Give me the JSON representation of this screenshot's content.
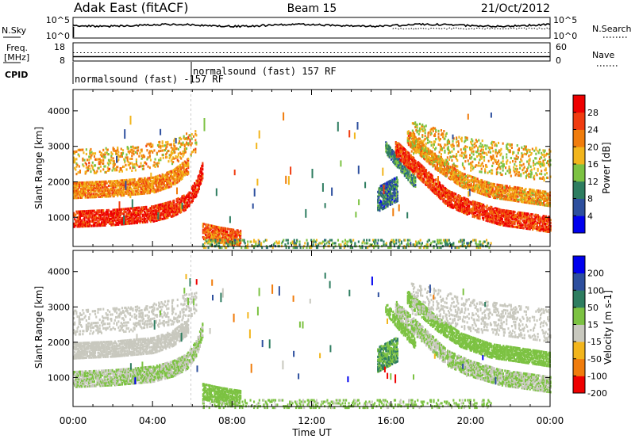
{
  "header": {
    "station": "Adak East (fitACF)",
    "beam": "Beam 15",
    "date": "21/Oct/2012"
  },
  "strips": {
    "sky_label": "N.Sky",
    "search_label": "N.Search",
    "sky_ticks": [
      "10^5",
      "10^0"
    ],
    "search_ticks": [
      "10^5",
      "10^0"
    ],
    "freq_label_1": "Freq.",
    "freq_label_2": "[MHz]",
    "freq_ticks": [
      "18",
      "8"
    ],
    "nave_label": "Nave",
    "nave_ticks": [
      "60",
      "0"
    ],
    "cpid_label": "CPID",
    "cpid_mode_a": "normalsound (fast) -157 RF",
    "cpid_mode_b": "normalsound (fast) 157 RF"
  },
  "time_ticks": [
    "00:00",
    "04:00",
    "08:00",
    "12:00",
    "16:00",
    "20:00",
    "00:00"
  ],
  "time_label": "Time UT",
  "chart_data": [
    {
      "type": "heatmap",
      "quantity": "Power",
      "ylabel": "Slant Range [km]",
      "xlabel": "Time UT",
      "x_range_hours": [
        0,
        24
      ],
      "ylim": [
        180,
        4600
      ],
      "y_ticks": [
        1000,
        2000,
        3000,
        4000
      ],
      "colorbar": {
        "label": "Power [dB]",
        "range": [
          0,
          30
        ],
        "ticks": [
          "4",
          "8",
          "12",
          "16",
          "20",
          "24",
          "28"
        ],
        "colors": [
          "#0000ee",
          "#2d4f9e",
          "#2e7d60",
          "#7cc242",
          "#f2b51c",
          "#f07c0c",
          "#f03c10",
          "#ee0000"
        ]
      },
      "regions": [
        {
          "desc": "band",
          "t": [
            0,
            2,
            4,
            5,
            5.7,
            6.2,
            6.5
          ],
          "y": [
            1000,
            1050,
            1150,
            1300,
            1500,
            1900,
            2400
          ],
          "halfwidth": 230,
          "power": 26
        },
        {
          "desc": "band",
          "t": [
            0,
            2,
            4,
            5,
            5.8
          ],
          "y": [
            1800,
            1850,
            1950,
            2150,
            2500
          ],
          "halfwidth": 220,
          "power": 20
        },
        {
          "desc": "sparse",
          "t": [
            0,
            3,
            5,
            6.2
          ],
          "y": [
            2600,
            2700,
            2900,
            3200
          ],
          "halfwidth": 350,
          "power": 18
        },
        {
          "desc": "band",
          "t": [
            6.5,
            7.2,
            7.8,
            8.4
          ],
          "y": [
            650,
            560,
            500,
            450
          ],
          "halfwidth": 220,
          "power": 22
        },
        {
          "desc": "blob",
          "t": [
            15.3,
            16.3
          ],
          "y": [
            1550,
            1850
          ],
          "halfwidth": 350,
          "power": 8
        },
        {
          "desc": "band",
          "t": [
            15.7,
            16.5,
            17.2
          ],
          "y": [
            3000,
            2450,
            2000
          ],
          "halfwidth": 150,
          "power": 10
        },
        {
          "desc": "band",
          "t": [
            16.2,
            17.5,
            18.8,
            20,
            21.5,
            24
          ],
          "y": [
            3000,
            2300,
            1600,
            1300,
            1050,
            850
          ],
          "halfwidth": 230,
          "power": 25
        },
        {
          "desc": "band",
          "t": [
            16.8,
            18.2,
            19.5,
            21,
            24
          ],
          "y": [
            3300,
            2600,
            2100,
            1800,
            1550
          ],
          "halfwidth": 200,
          "power": 19
        },
        {
          "desc": "sparse",
          "t": [
            17,
            20,
            24
          ],
          "y": [
            3300,
            2800,
            2500
          ],
          "halfwidth": 450,
          "power": 17
        },
        {
          "desc": "ground",
          "t": [
            6.5,
            21
          ],
          "y": [
            300,
            300
          ],
          "halfwidth": 120,
          "power": 12
        }
      ]
    },
    {
      "type": "heatmap",
      "quantity": "Velocity",
      "ylabel": "Slant Range [km]",
      "xlabel": "Time UT",
      "x_range_hours": [
        0,
        24
      ],
      "ylim": [
        180,
        4600
      ],
      "y_ticks": [
        1000,
        2000,
        3000,
        4000
      ],
      "colorbar": {
        "label": "Velocity [m s-1]",
        "range": [
          -250,
          250
        ],
        "ticks": [
          "200",
          "100",
          "50",
          "15",
          "-15",
          "-50",
          "-100",
          "-200"
        ],
        "colors": [
          "#ee0000",
          "#f07c0c",
          "#f2b51c",
          "#c8c8be",
          "#7cc242",
          "#2e7d60",
          "#2d4f9e",
          "#0000ee"
        ]
      },
      "regions": [
        {
          "desc": "band",
          "t": [
            0,
            2,
            4,
            5,
            5.7,
            6.2,
            6.5
          ],
          "y": [
            1000,
            1050,
            1150,
            1300,
            1500,
            1900,
            2400
          ],
          "halfwidth": 230,
          "velocity": 0
        },
        {
          "desc": "band",
          "t": [
            0,
            2,
            4,
            5,
            5.8
          ],
          "y": [
            1800,
            1850,
            1950,
            2150,
            2500
          ],
          "halfwidth": 220,
          "velocity": -20
        },
        {
          "desc": "sparse",
          "t": [
            0,
            3,
            5,
            6.2
          ],
          "y": [
            2600,
            2700,
            2900,
            3200
          ],
          "halfwidth": 350,
          "velocity": -40
        },
        {
          "desc": "band",
          "t": [
            6.5,
            7.2,
            7.8,
            8.4
          ],
          "y": [
            650,
            560,
            500,
            450
          ],
          "halfwidth": 220,
          "velocity": 40
        },
        {
          "desc": "blob",
          "t": [
            15.3,
            16.3
          ],
          "y": [
            1550,
            1850
          ],
          "halfwidth": 350,
          "velocity": 60
        },
        {
          "desc": "band",
          "t": [
            15.7,
            16.5,
            17.2
          ],
          "y": [
            3000,
            2450,
            2000
          ],
          "halfwidth": 150,
          "velocity": 40
        },
        {
          "desc": "band",
          "t": [
            16.2,
            17.5,
            18.8,
            20,
            21.5,
            24
          ],
          "y": [
            3000,
            2300,
            1600,
            1300,
            1050,
            850
          ],
          "halfwidth": 230,
          "velocity": 0
        },
        {
          "desc": "band",
          "t": [
            16.8,
            18.2,
            19.5,
            21,
            24
          ],
          "y": [
            3300,
            2600,
            2100,
            1800,
            1550
          ],
          "halfwidth": 200,
          "velocity": 40
        },
        {
          "desc": "sparse",
          "t": [
            17,
            20,
            24
          ],
          "y": [
            3300,
            2800,
            2500
          ],
          "halfwidth": 450,
          "velocity": -30
        },
        {
          "desc": "ground",
          "t": [
            6.5,
            21
          ],
          "y": [
            300,
            300
          ],
          "halfwidth": 120,
          "velocity": 10
        }
      ]
    }
  ]
}
